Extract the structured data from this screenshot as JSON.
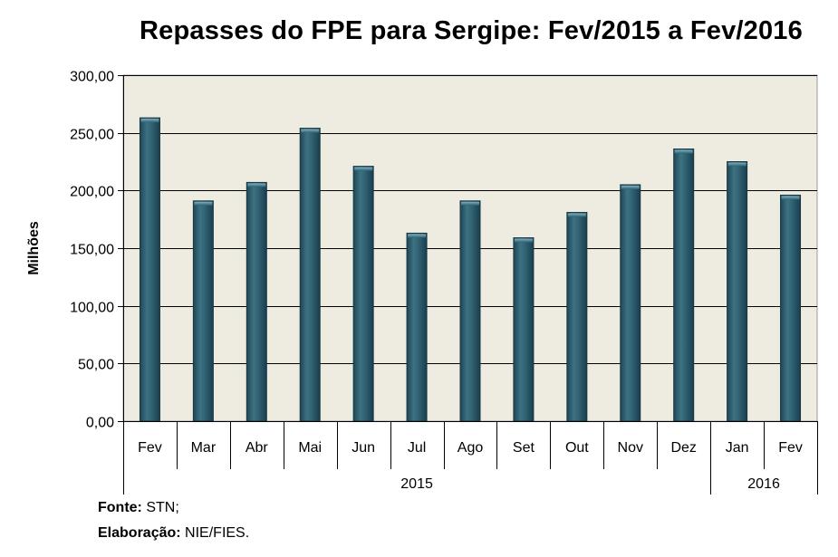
{
  "chart_data": {
    "type": "bar",
    "title": "Repasses do FPE para Sergipe: Fev/2015 a Fev/2016",
    "ylabel": "Milhões",
    "xlabel": "",
    "categories": [
      "Fev",
      "Mar",
      "Abr",
      "Mai",
      "Jun",
      "Jul",
      "Ago",
      "Set",
      "Out",
      "Nov",
      "Dez",
      "Jan",
      "Fev"
    ],
    "values": [
      263,
      191,
      207,
      254,
      221,
      163,
      191,
      159,
      181,
      205,
      236,
      225,
      196
    ],
    "year_groups": [
      {
        "label": "2015",
        "span": 11
      },
      {
        "label": "2016",
        "span": 2
      }
    ],
    "ylim": [
      0,
      300
    ],
    "yticks": [
      0,
      50,
      100,
      150,
      200,
      250,
      300
    ],
    "ytick_labels": [
      "0,00",
      "50,00",
      "100,00",
      "150,00",
      "200,00",
      "250,00",
      "300,00"
    ],
    "grid": true,
    "colors": {
      "bar": "#2b5a6b",
      "bar_edge": "#163845",
      "plot_bg": "#eeece1",
      "grid": "#000000"
    }
  },
  "footer": {
    "source_label": "Fonte:",
    "source_value": "STN;",
    "credit_label": "Elaboração:",
    "credit_value": "NIE/FIES."
  }
}
